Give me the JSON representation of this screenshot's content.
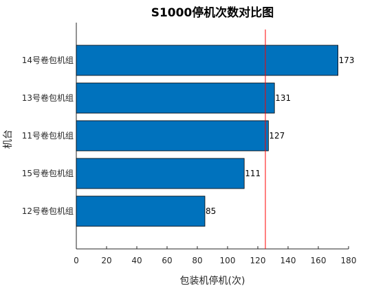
{
  "chart_data": {
    "type": "bar",
    "orientation": "horizontal",
    "title": "S1000停机次数对比图",
    "xlabel": "包装机停机(次)",
    "ylabel": "机台",
    "categories": [
      "14号卷包机组",
      "13号卷包机组",
      "11号卷包机组",
      "15号卷包机组",
      "12号卷包机组"
    ],
    "values": [
      173,
      131,
      127,
      111,
      85
    ],
    "data_labels": [
      "173",
      "131",
      "127",
      "111",
      "85"
    ],
    "xlim": [
      0,
      180
    ],
    "xticks": [
      0,
      20,
      40,
      60,
      80,
      100,
      120,
      140,
      160,
      180
    ],
    "xtick_labels": [
      "0",
      "20",
      "40",
      "60",
      "80",
      "100",
      "120",
      "140",
      "160",
      "180"
    ],
    "reference_line": {
      "x": 125,
      "color": "#ff0000"
    },
    "bar_color": "#0072bd",
    "grid": false
  }
}
